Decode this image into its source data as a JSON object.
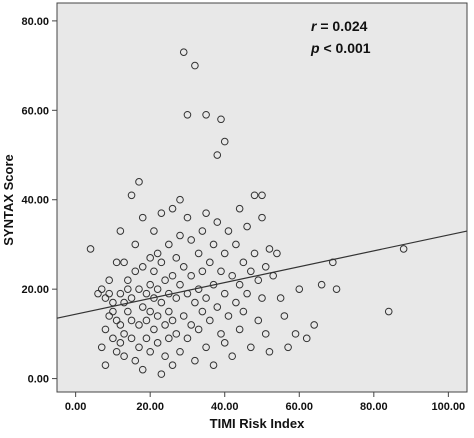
{
  "chart_data": {
    "type": "scatter",
    "title": "",
    "xlabel": "TIMI Risk Index",
    "ylabel": "SYNTAX Score",
    "xlim": [
      -5,
      105
    ],
    "ylim": [
      -3,
      84
    ],
    "x_ticks": [
      "0.00",
      "20.00",
      "40.00",
      "60.00",
      "80.00",
      "100.00"
    ],
    "y_ticks": [
      "0.00",
      "20.00",
      "40.00",
      "60.00",
      "80.00"
    ],
    "annotation": {
      "r_symbol": "r",
      "r_value": " = 0.024",
      "p_symbol": "p",
      "p_value": " < 0.001"
    },
    "plot_background": "#e8e8e8",
    "marker_color": "#333333",
    "fit_line": {
      "x": [
        -5,
        105
      ],
      "y": [
        13.5,
        33.0
      ]
    },
    "points": [
      {
        "x": 4,
        "y": 29
      },
      {
        "x": 6,
        "y": 19
      },
      {
        "x": 7,
        "y": 7
      },
      {
        "x": 7,
        "y": 20
      },
      {
        "x": 8,
        "y": 18
      },
      {
        "x": 8,
        "y": 11
      },
      {
        "x": 8,
        "y": 3
      },
      {
        "x": 9,
        "y": 19
      },
      {
        "x": 9,
        "y": 14
      },
      {
        "x": 9,
        "y": 22
      },
      {
        "x": 10,
        "y": 15
      },
      {
        "x": 10,
        "y": 9
      },
      {
        "x": 10,
        "y": 17
      },
      {
        "x": 11,
        "y": 13
      },
      {
        "x": 11,
        "y": 26
      },
      {
        "x": 11,
        "y": 6
      },
      {
        "x": 12,
        "y": 33
      },
      {
        "x": 12,
        "y": 19
      },
      {
        "x": 12,
        "y": 12
      },
      {
        "x": 12,
        "y": 8
      },
      {
        "x": 13,
        "y": 26
      },
      {
        "x": 13,
        "y": 17
      },
      {
        "x": 13,
        "y": 10
      },
      {
        "x": 13,
        "y": 5
      },
      {
        "x": 14,
        "y": 20
      },
      {
        "x": 14,
        "y": 15
      },
      {
        "x": 14,
        "y": 22
      },
      {
        "x": 15,
        "y": 41
      },
      {
        "x": 15,
        "y": 9
      },
      {
        "x": 15,
        "y": 13
      },
      {
        "x": 15,
        "y": 18
      },
      {
        "x": 16,
        "y": 24
      },
      {
        "x": 16,
        "y": 30
      },
      {
        "x": 16,
        "y": 4
      },
      {
        "x": 17,
        "y": 44
      },
      {
        "x": 17,
        "y": 20
      },
      {
        "x": 17,
        "y": 12
      },
      {
        "x": 17,
        "y": 7
      },
      {
        "x": 18,
        "y": 36
      },
      {
        "x": 18,
        "y": 16
      },
      {
        "x": 18,
        "y": 25
      },
      {
        "x": 18,
        "y": 2
      },
      {
        "x": 19,
        "y": 19
      },
      {
        "x": 19,
        "y": 13
      },
      {
        "x": 19,
        "y": 9
      },
      {
        "x": 20,
        "y": 27
      },
      {
        "x": 20,
        "y": 21
      },
      {
        "x": 20,
        "y": 15
      },
      {
        "x": 20,
        "y": 6
      },
      {
        "x": 21,
        "y": 33
      },
      {
        "x": 21,
        "y": 24
      },
      {
        "x": 21,
        "y": 18
      },
      {
        "x": 21,
        "y": 11
      },
      {
        "x": 22,
        "y": 28
      },
      {
        "x": 22,
        "y": 20
      },
      {
        "x": 22,
        "y": 14
      },
      {
        "x": 22,
        "y": 8
      },
      {
        "x": 23,
        "y": 37
      },
      {
        "x": 23,
        "y": 26
      },
      {
        "x": 23,
        "y": 17
      },
      {
        "x": 23,
        "y": 1
      },
      {
        "x": 24,
        "y": 22
      },
      {
        "x": 24,
        "y": 12
      },
      {
        "x": 24,
        "y": 5
      },
      {
        "x": 25,
        "y": 30
      },
      {
        "x": 25,
        "y": 19
      },
      {
        "x": 25,
        "y": 15
      },
      {
        "x": 25,
        "y": 9
      },
      {
        "x": 26,
        "y": 38
      },
      {
        "x": 26,
        "y": 23
      },
      {
        "x": 26,
        "y": 13
      },
      {
        "x": 26,
        "y": 3
      },
      {
        "x": 27,
        "y": 27
      },
      {
        "x": 27,
        "y": 18
      },
      {
        "x": 27,
        "y": 10
      },
      {
        "x": 28,
        "y": 40
      },
      {
        "x": 28,
        "y": 32
      },
      {
        "x": 28,
        "y": 21
      },
      {
        "x": 28,
        "y": 6
      },
      {
        "x": 29,
        "y": 73
      },
      {
        "x": 29,
        "y": 25
      },
      {
        "x": 29,
        "y": 14
      },
      {
        "x": 30,
        "y": 59
      },
      {
        "x": 30,
        "y": 36
      },
      {
        "x": 30,
        "y": 19
      },
      {
        "x": 30,
        "y": 9
      },
      {
        "x": 31,
        "y": 31
      },
      {
        "x": 31,
        "y": 23
      },
      {
        "x": 31,
        "y": 12
      },
      {
        "x": 32,
        "y": 70
      },
      {
        "x": 32,
        "y": 17
      },
      {
        "x": 32,
        "y": 4
      },
      {
        "x": 33,
        "y": 28
      },
      {
        "x": 33,
        "y": 20
      },
      {
        "x": 33,
        "y": 11
      },
      {
        "x": 34,
        "y": 33
      },
      {
        "x": 34,
        "y": 24
      },
      {
        "x": 34,
        "y": 15
      },
      {
        "x": 35,
        "y": 59
      },
      {
        "x": 35,
        "y": 37
      },
      {
        "x": 35,
        "y": 18
      },
      {
        "x": 35,
        "y": 7
      },
      {
        "x": 36,
        "y": 26
      },
      {
        "x": 36,
        "y": 13
      },
      {
        "x": 37,
        "y": 30
      },
      {
        "x": 37,
        "y": 21
      },
      {
        "x": 37,
        "y": 3
      },
      {
        "x": 38,
        "y": 50
      },
      {
        "x": 38,
        "y": 35
      },
      {
        "x": 38,
        "y": 16
      },
      {
        "x": 39,
        "y": 58
      },
      {
        "x": 39,
        "y": 24
      },
      {
        "x": 39,
        "y": 10
      },
      {
        "x": 40,
        "y": 53
      },
      {
        "x": 40,
        "y": 28
      },
      {
        "x": 40,
        "y": 19
      },
      {
        "x": 40,
        "y": 8
      },
      {
        "x": 41,
        "y": 33
      },
      {
        "x": 41,
        "y": 14
      },
      {
        "x": 42,
        "y": 23
      },
      {
        "x": 42,
        "y": 5
      },
      {
        "x": 43,
        "y": 30
      },
      {
        "x": 43,
        "y": 17
      },
      {
        "x": 44,
        "y": 38
      },
      {
        "x": 44,
        "y": 21
      },
      {
        "x": 44,
        "y": 11
      },
      {
        "x": 45,
        "y": 26
      },
      {
        "x": 45,
        "y": 15
      },
      {
        "x": 46,
        "y": 34
      },
      {
        "x": 46,
        "y": 19
      },
      {
        "x": 47,
        "y": 7
      },
      {
        "x": 47,
        "y": 24
      },
      {
        "x": 48,
        "y": 41
      },
      {
        "x": 48,
        "y": 28
      },
      {
        "x": 49,
        "y": 22
      },
      {
        "x": 49,
        "y": 13
      },
      {
        "x": 50,
        "y": 41
      },
      {
        "x": 50,
        "y": 36
      },
      {
        "x": 50,
        "y": 18
      },
      {
        "x": 51,
        "y": 25
      },
      {
        "x": 51,
        "y": 10
      },
      {
        "x": 52,
        "y": 29
      },
      {
        "x": 52,
        "y": 6
      },
      {
        "x": 53,
        "y": 23
      },
      {
        "x": 54,
        "y": 28
      },
      {
        "x": 55,
        "y": 18
      },
      {
        "x": 56,
        "y": 14
      },
      {
        "x": 57,
        "y": 7
      },
      {
        "x": 59,
        "y": 10
      },
      {
        "x": 60,
        "y": 20
      },
      {
        "x": 62,
        "y": 9
      },
      {
        "x": 64,
        "y": 12
      },
      {
        "x": 66,
        "y": 21
      },
      {
        "x": 69,
        "y": 26
      },
      {
        "x": 70,
        "y": 20
      },
      {
        "x": 84,
        "y": 15
      },
      {
        "x": 88,
        "y": 29
      }
    ]
  }
}
